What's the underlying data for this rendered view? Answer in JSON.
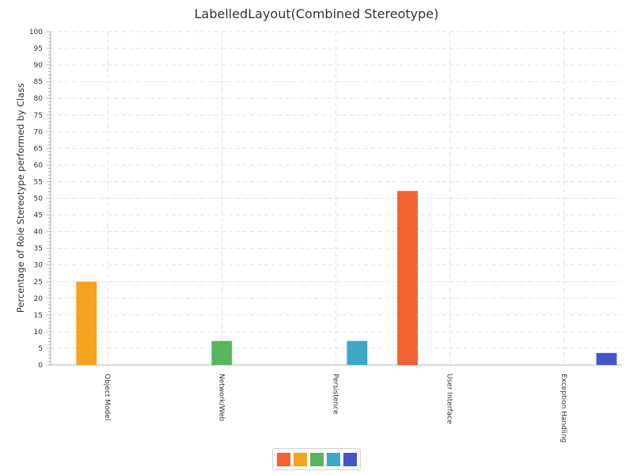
{
  "chart_data": {
    "type": "bar",
    "title": "LabelledLayout(Combined Stereotype)",
    "ylabel": "Percentage of Role Stereotype performed by Class",
    "xlabel": "",
    "ylim": [
      0,
      100
    ],
    "y_tick_step": 5,
    "grid": true,
    "legend_position": "bottom",
    "categories": [
      "Object Model",
      "Network/Web",
      "Persistence",
      "User Interface",
      "Exception Handling"
    ],
    "series": [
      {
        "color": "#f26130",
        "values": [
          0,
          0,
          0,
          52.2,
          0
        ]
      },
      {
        "color": "#f6a31f",
        "values": [
          25.0,
          0,
          0,
          0,
          0
        ]
      },
      {
        "color": "#59b55c",
        "values": [
          0,
          7.2,
          0,
          0,
          0
        ]
      },
      {
        "color": "#3fa7c6",
        "values": [
          0,
          0,
          7.2,
          0,
          0
        ]
      },
      {
        "color": "#4456cc",
        "values": [
          0,
          0,
          0,
          0,
          3.6
        ]
      }
    ]
  }
}
